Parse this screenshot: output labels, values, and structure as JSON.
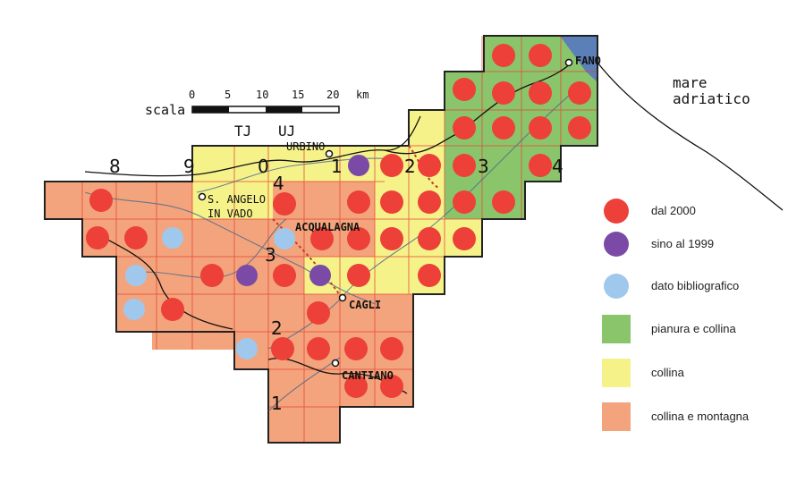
{
  "colors": {
    "green": "#8bc56b",
    "yellow": "#f6f28a",
    "orange": "#f4a47c",
    "sea": "#5b7fb7",
    "grid_line": "#e44535",
    "dot_red": "#ec4038",
    "dot_purple": "#7a4aa6",
    "dot_blue": "#9fc8ec"
  },
  "scale": {
    "label": "scala",
    "ticks": [
      "0",
      "5",
      "10",
      "15",
      "20"
    ],
    "unit": "km"
  },
  "column_codes": [
    "TJ",
    "UJ"
  ],
  "grid_numbers": {
    "top": [
      "8",
      "9",
      "0",
      "1",
      "2",
      "3",
      "4"
    ],
    "left": [
      "4",
      "3",
      "2",
      "1"
    ]
  },
  "towns": [
    "URBINO",
    "S. ANGELO",
    "IN VADO",
    "ACQUALAGNA",
    "CAGLI",
    "CANTIANO",
    "FANO"
  ],
  "sea_label": [
    "mare",
    "adriatico"
  ],
  "legend": [
    {
      "label": "dal 2000",
      "kind": "dot",
      "color": "#ec4038"
    },
    {
      "label": "sino al 1999",
      "kind": "dot",
      "color": "#7a4aa6"
    },
    {
      "label": "dato bibliografico",
      "kind": "dot",
      "color": "#9fc8ec"
    },
    {
      "label": "pianura e collina",
      "kind": "box",
      "color": "#8bc56b"
    },
    {
      "label": "collina",
      "kind": "box",
      "color": "#f6f28a"
    },
    {
      "label": "collina e montagna",
      "kind": "box",
      "color": "#f4a47c"
    }
  ]
}
